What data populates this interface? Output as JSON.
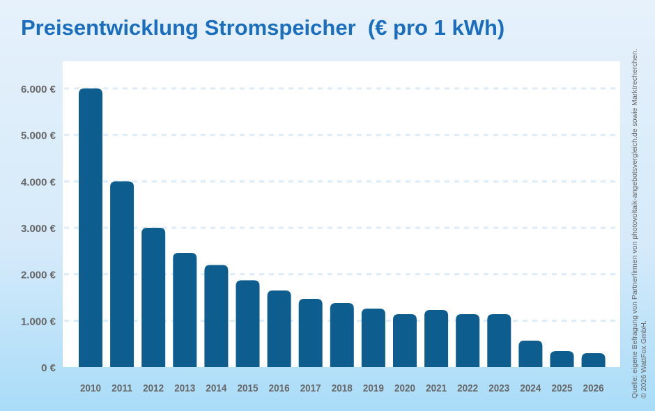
{
  "title": "Preisentwicklung Stromspeicher  (€ pro 1 kWh)",
  "source_line1": "Quelle: eigene Befragung von Partnerfirmen von photovoltaik-angebotsvergleich.de sowie Marktrecherchen.",
  "source_line2": "© 2026 WattFox GmbH.",
  "colors": {
    "bar": "#0d5e8f",
    "title": "#1a6ec0",
    "grid": "#dcecf8"
  },
  "chart_data": {
    "type": "bar",
    "categories": [
      "2010",
      "2011",
      "2012",
      "2013",
      "2014",
      "2015",
      "2016",
      "2017",
      "2018",
      "2019",
      "2020",
      "2021",
      "2022",
      "2023",
      "2024",
      "2025",
      "2026"
    ],
    "values": [
      6000,
      4000,
      3000,
      2460,
      2200,
      1870,
      1650,
      1470,
      1380,
      1260,
      1140,
      1230,
      1140,
      1140,
      570,
      345,
      300
    ],
    "ylim": [
      0,
      6000
    ],
    "yticks": [
      0,
      1000,
      2000,
      3000,
      4000,
      5000,
      6000
    ],
    "ytick_labels": [
      "0 €",
      "1.000 €",
      "2.000 €",
      "3.000 €",
      "4.000 €",
      "5.000 €",
      "6.000 €"
    ],
    "grid": true,
    "title": "Preisentwicklung Stromspeicher  (€ pro 1 kWh)",
    "xlabel": "",
    "ylabel": ""
  }
}
